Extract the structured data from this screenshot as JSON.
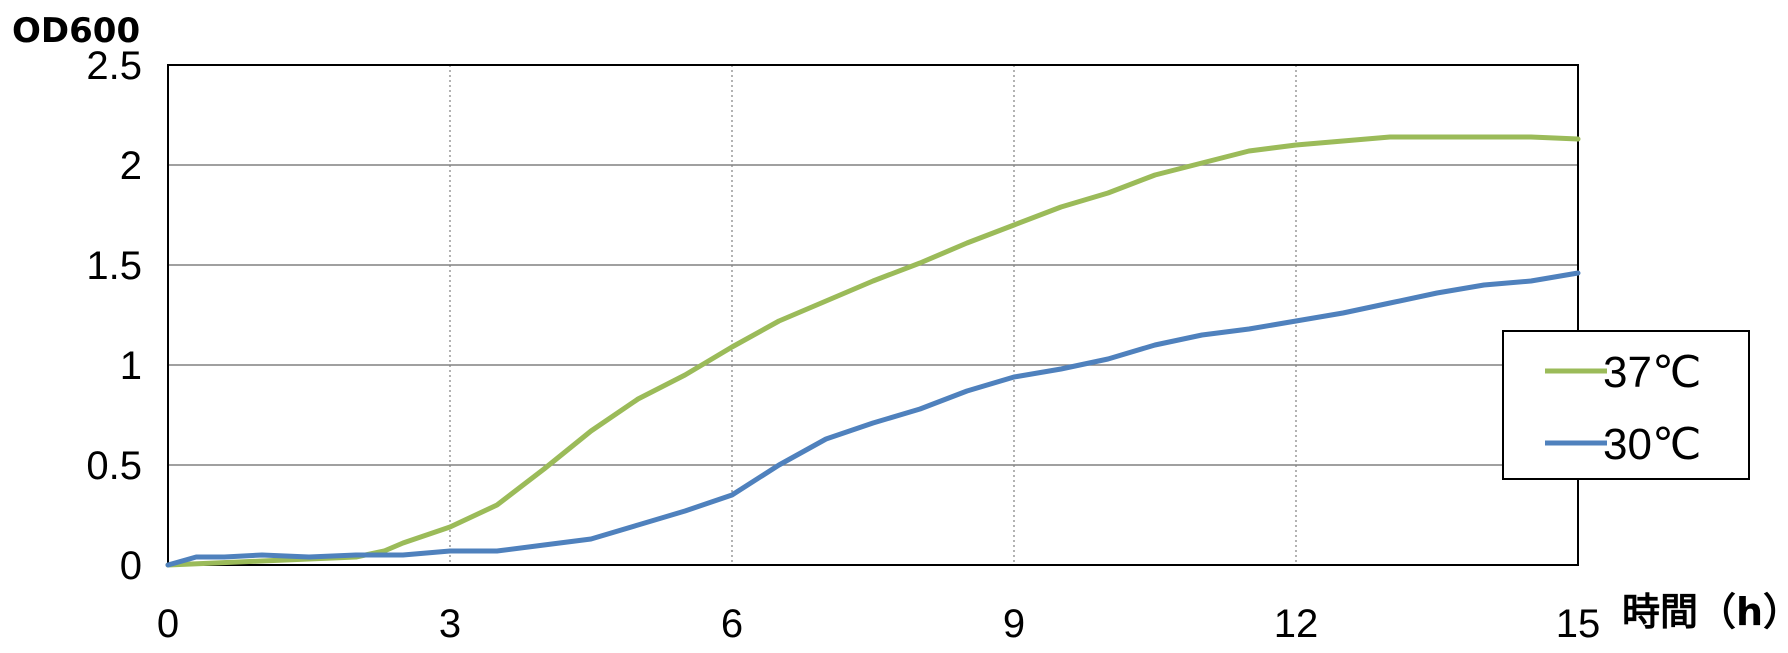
{
  "chart_data": {
    "type": "line",
    "ylabel": "OD600",
    "xlabel": "時間（h）",
    "xlim": [
      0,
      15
    ],
    "ylim": [
      0,
      2.5
    ],
    "x_ticks": [
      "0",
      "3",
      "6",
      "9",
      "12",
      "15"
    ],
    "y_ticks": [
      "0",
      "0.5",
      "1",
      "1.5",
      "2",
      "2.5"
    ],
    "grid": {
      "horizontal": "solid",
      "vertical": "dotted"
    },
    "legend_position": "right",
    "series": [
      {
        "name": "37℃",
        "color": "#9BBB59",
        "points": [
          [
            0,
            0
          ],
          [
            0.5,
            0.01
          ],
          [
            1,
            0.02
          ],
          [
            1.5,
            0.03
          ],
          [
            2,
            0.04
          ],
          [
            2.3,
            0.07
          ],
          [
            2.5,
            0.11
          ],
          [
            3,
            0.19
          ],
          [
            3.5,
            0.3
          ],
          [
            4,
            0.48
          ],
          [
            4.5,
            0.67
          ],
          [
            5,
            0.83
          ],
          [
            5.5,
            0.95
          ],
          [
            6,
            1.09
          ],
          [
            6.5,
            1.22
          ],
          [
            7,
            1.32
          ],
          [
            7.5,
            1.42
          ],
          [
            8,
            1.51
          ],
          [
            8.5,
            1.61
          ],
          [
            9,
            1.7
          ],
          [
            9.5,
            1.79
          ],
          [
            10,
            1.86
          ],
          [
            10.5,
            1.95
          ],
          [
            11,
            2.01
          ],
          [
            11.5,
            2.07
          ],
          [
            12,
            2.1
          ],
          [
            12.5,
            2.12
          ],
          [
            13,
            2.14
          ],
          [
            13.5,
            2.14
          ],
          [
            14,
            2.14
          ],
          [
            14.5,
            2.14
          ],
          [
            15,
            2.13
          ]
        ]
      },
      {
        "name": "30℃",
        "color": "#4F81BD",
        "points": [
          [
            0,
            0
          ],
          [
            0.3,
            0.04
          ],
          [
            0.6,
            0.04
          ],
          [
            1,
            0.05
          ],
          [
            1.5,
            0.04
          ],
          [
            2,
            0.05
          ],
          [
            2.5,
            0.05
          ],
          [
            3,
            0.07
          ],
          [
            3.5,
            0.07
          ],
          [
            4,
            0.1
          ],
          [
            4.5,
            0.13
          ],
          [
            5,
            0.2
          ],
          [
            5.5,
            0.27
          ],
          [
            6,
            0.35
          ],
          [
            6.5,
            0.5
          ],
          [
            7,
            0.63
          ],
          [
            7.5,
            0.71
          ],
          [
            8,
            0.78
          ],
          [
            8.5,
            0.87
          ],
          [
            9,
            0.94
          ],
          [
            9.5,
            0.98
          ],
          [
            10,
            1.03
          ],
          [
            10.5,
            1.1
          ],
          [
            11,
            1.15
          ],
          [
            11.5,
            1.18
          ],
          [
            12,
            1.22
          ],
          [
            12.5,
            1.26
          ],
          [
            13,
            1.31
          ],
          [
            13.5,
            1.36
          ],
          [
            14,
            1.4
          ],
          [
            14.5,
            1.42
          ],
          [
            15,
            1.46
          ]
        ]
      }
    ]
  }
}
